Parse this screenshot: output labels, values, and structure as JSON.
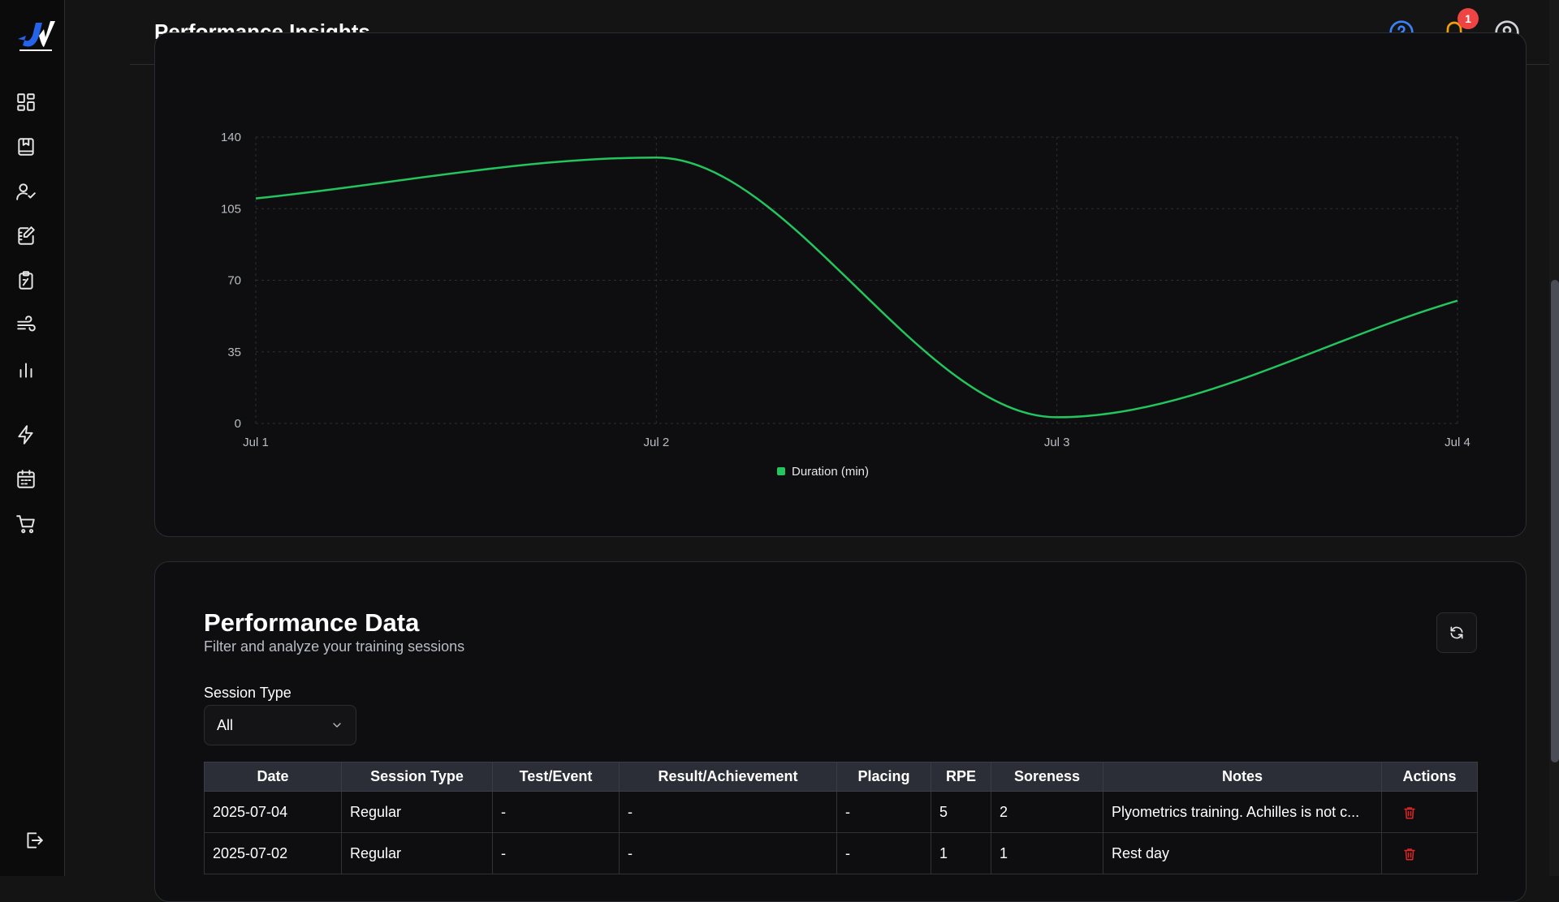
{
  "header": {
    "title": "Performance Insights",
    "notification_count": "1",
    "icons": [
      "help-circle-icon",
      "bell-icon",
      "user-circle-icon"
    ]
  },
  "sidebar": {
    "logo": "app-logo",
    "items": [
      {
        "icon": "dashboard-icon"
      },
      {
        "icon": "notebook-icon"
      },
      {
        "icon": "user-check-icon"
      },
      {
        "icon": "journal-edit-icon"
      },
      {
        "icon": "clipboard-icon"
      },
      {
        "icon": "wind-icon"
      },
      {
        "icon": "bar-chart-icon"
      },
      {
        "icon": "lightning-icon"
      },
      {
        "icon": "calendar-icon"
      },
      {
        "icon": "cart-icon"
      }
    ],
    "logout_icon": "logout-icon"
  },
  "colors": {
    "accent": "#22c55e",
    "badge": "#ef4444",
    "help": "#3b82f6",
    "bell": "#f59e0b",
    "danger": "#dc2626"
  },
  "chart_data": {
    "type": "line",
    "x": [
      "Jul 1",
      "Jul 2",
      "Jul 3",
      "Jul 4"
    ],
    "series": [
      {
        "name": "Duration (min)",
        "values": [
          110,
          130,
          3,
          60
        ],
        "color": "#22c55e"
      }
    ],
    "yticks": [
      0,
      35,
      70,
      105,
      140
    ],
    "ylim": [
      0,
      140
    ],
    "grid": true,
    "legend": "bottom-center"
  },
  "performance": {
    "title": "Performance Data",
    "subtitle": "Filter and analyze your training sessions",
    "filter_label": "Session Type",
    "filter_value": "All",
    "columns": [
      "Date",
      "Session Type",
      "Test/Event",
      "Result/Achievement",
      "Placing",
      "RPE",
      "Soreness",
      "Notes",
      "Actions"
    ],
    "rows": [
      [
        "2025-07-04",
        "Regular",
        "-",
        "-",
        "-",
        "5",
        "2",
        "Plyometrics training. Achilles is not c..."
      ],
      [
        "2025-07-02",
        "Regular",
        "-",
        "-",
        "-",
        "1",
        "1",
        "Rest day"
      ]
    ]
  }
}
